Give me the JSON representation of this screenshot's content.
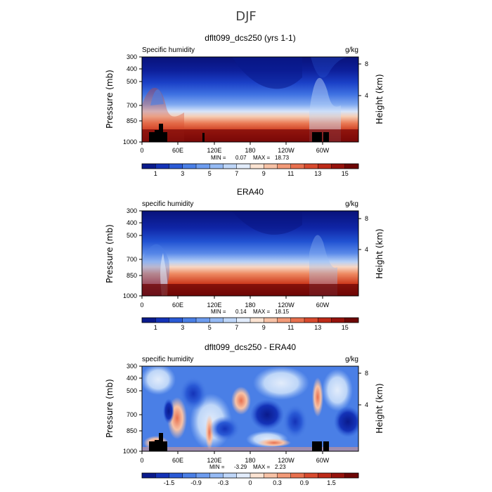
{
  "title": "DJF",
  "chart_data": [
    {
      "type": "heatmap",
      "title": "dflt099_dcs250 (yrs 1-1)",
      "variable": "Specific humidity",
      "units": "g/kg",
      "ylabel": "Pressure (mb)",
      "ylabel_right": "Height (km)",
      "x_ticks": [
        "0",
        "60E",
        "120E",
        "180",
        "120W",
        "60W"
      ],
      "y_ticks": [
        "300",
        "400",
        "500",
        "700",
        "850",
        "1000"
      ],
      "y_ticks_right": [
        "8",
        "4"
      ],
      "min_label": "MIN =",
      "min_value": "0.07",
      "max_label": "MAX =",
      "max_value": "18.73",
      "colorbar_labels": [
        "1",
        "3",
        "5",
        "7",
        "9",
        "11",
        "13",
        "15"
      ],
      "colorbar_colors": [
        "#0a1a8c",
        "#1433b8",
        "#2a5ad6",
        "#4a7fe6",
        "#6d9cef",
        "#95baf4",
        "#bed6f8",
        "#e2ecfb",
        "#fbe3d2",
        "#f7c2a6",
        "#f29a78",
        "#e8704e",
        "#d84a2e",
        "#bd2a18",
        "#96120c",
        "#6e0605"
      ]
    },
    {
      "type": "heatmap",
      "title": "ERA40",
      "variable": "specific humidity",
      "units": "g/kg",
      "ylabel": "Pressure (mb)",
      "ylabel_right": "Height (km)",
      "x_ticks": [
        "0",
        "60E",
        "120E",
        "180",
        "120W",
        "60W"
      ],
      "y_ticks": [
        "300",
        "400",
        "500",
        "700",
        "850",
        "1000"
      ],
      "y_ticks_right": [
        "8",
        "4"
      ],
      "min_label": "MIN =",
      "min_value": "0.14",
      "max_label": "MAX =",
      "max_value": "18.15",
      "colorbar_labels": [
        "1",
        "3",
        "5",
        "7",
        "9",
        "11",
        "13",
        "15"
      ],
      "colorbar_colors": [
        "#0a1a8c",
        "#1433b8",
        "#2a5ad6",
        "#4a7fe6",
        "#6d9cef",
        "#95baf4",
        "#bed6f8",
        "#e2ecfb",
        "#fbe3d2",
        "#f7c2a6",
        "#f29a78",
        "#e8704e",
        "#d84a2e",
        "#bd2a18",
        "#96120c",
        "#6e0605"
      ]
    },
    {
      "type": "heatmap",
      "title": "dflt099_dcs250 - ERA40",
      "variable": "specific humidity",
      "units": "g/kg",
      "ylabel": "Pressure (mb)",
      "ylabel_right": "Height (km)",
      "x_ticks": [
        "0",
        "60E",
        "120E",
        "180",
        "120W",
        "60W"
      ],
      "y_ticks": [
        "300",
        "400",
        "500",
        "700",
        "850",
        "1000"
      ],
      "y_ticks_right": [
        "8",
        "4"
      ],
      "min_label": "MIN =",
      "min_value": "-3.29",
      "max_label": "MAX =",
      "max_value": "2.23",
      "colorbar_labels": [
        "-1.5",
        "-0.9",
        "-0.3",
        "0",
        "0.3",
        "0.9",
        "1.5"
      ],
      "colorbar_colors": [
        "#0a1a8c",
        "#1433b8",
        "#2a5ad6",
        "#4a7fe6",
        "#6d9cef",
        "#95baf4",
        "#bed6f8",
        "#e2ecfb",
        "#fbe3d2",
        "#f7c2a6",
        "#f29a78",
        "#e8704e",
        "#d84a2e",
        "#bd2a18",
        "#96120c",
        "#6e0605"
      ]
    }
  ]
}
